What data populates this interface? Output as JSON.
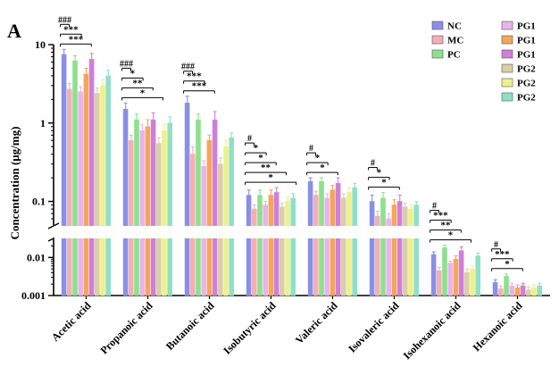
{
  "chart_data": {
    "type": "bar",
    "panel_label": "A",
    "ylabel": "Concentration (μg/mg)",
    "y_scale": "log, broken",
    "upper_ylim": [
      0.05,
      10
    ],
    "lower_ylim": [
      0.001,
      0.03
    ],
    "upper_ticks": [
      "10",
      "1",
      "0.1"
    ],
    "lower_ticks": [
      "0.01",
      "0.001"
    ],
    "grid": false,
    "legend_position": "top-right",
    "categories": [
      "Acetic acid",
      "Propanoic acid",
      "Butanoic acid",
      "Isobutyric acid",
      "Valeric acid",
      "Isovaleric acid",
      "Isohexanoic acid",
      "Hexanoic acid"
    ],
    "series": [
      {
        "name": "NC",
        "color": "#8a8fe6",
        "values": [
          7.5,
          1.5,
          1.8,
          0.12,
          0.18,
          0.1,
          0.012,
          0.0022
        ],
        "errors": [
          1.2,
          0.3,
          0.4,
          0.02,
          0.02,
          0.02,
          0.002,
          0.0004
        ]
      },
      {
        "name": "MC",
        "color": "#f3b0b4",
        "values": [
          2.7,
          0.6,
          0.4,
          0.08,
          0.12,
          0.065,
          0.0045,
          0.0015
        ],
        "errors": [
          0.5,
          0.1,
          0.1,
          0.01,
          0.015,
          0.01,
          0.001,
          0.0003
        ]
      },
      {
        "name": "PC",
        "color": "#8ee08e",
        "values": [
          6.2,
          1.1,
          1.1,
          0.12,
          0.18,
          0.11,
          0.018,
          0.0032
        ],
        "errors": [
          1.0,
          0.2,
          0.2,
          0.02,
          0.02,
          0.02,
          0.003,
          0.0005
        ]
      },
      {
        "name": "PG1",
        "color": "#e8b4ec",
        "values": [
          2.5,
          0.8,
          0.28,
          0.09,
          0.11,
          0.06,
          0.007,
          0.0018
        ],
        "errors": [
          0.4,
          0.15,
          0.05,
          0.01,
          0.015,
          0.01,
          0.001,
          0.0003
        ]
      },
      {
        "name": "PG1",
        "color": "#f6a55a",
        "values": [
          4.2,
          0.9,
          0.6,
          0.12,
          0.14,
          0.09,
          0.009,
          0.0016
        ],
        "errors": [
          0.8,
          0.2,
          0.1,
          0.02,
          0.02,
          0.015,
          0.002,
          0.0003
        ]
      },
      {
        "name": "PG1",
        "color": "#cf7fd8",
        "values": [
          6.5,
          1.1,
          1.1,
          0.13,
          0.17,
          0.1,
          0.015,
          0.0018
        ],
        "errors": [
          1.2,
          0.25,
          0.3,
          0.02,
          0.03,
          0.02,
          0.004,
          0.0003
        ]
      },
      {
        "name": "PG2",
        "color": "#d8cfa8",
        "values": [
          2.4,
          0.55,
          0.3,
          0.085,
          0.11,
          0.085,
          0.004,
          0.0014
        ],
        "errors": [
          0.4,
          0.1,
          0.06,
          0.01,
          0.015,
          0.01,
          0.001,
          0.0003
        ]
      },
      {
        "name": "PG2",
        "color": "#eef08e",
        "values": [
          3.0,
          0.8,
          0.5,
          0.1,
          0.13,
          0.08,
          0.005,
          0.0016
        ],
        "errors": [
          0.6,
          0.15,
          0.1,
          0.015,
          0.02,
          0.01,
          0.001,
          0.0003
        ]
      },
      {
        "name": "PG2",
        "color": "#8fe0c6",
        "values": [
          4.0,
          1.0,
          0.65,
          0.11,
          0.15,
          0.09,
          0.011,
          0.0018
        ],
        "errors": [
          0.7,
          0.2,
          0.1,
          0.015,
          0.02,
          0.01,
          0.002,
          0.0003
        ]
      }
    ],
    "annotations": [
      {
        "category": "Acetic acid",
        "labels": [
          "###",
          "***",
          "***"
        ]
      },
      {
        "category": "Propanoic acid",
        "labels": [
          "###",
          "*",
          "**",
          "*"
        ]
      },
      {
        "category": "Butanoic acid",
        "labels": [
          "###",
          "***",
          "***"
        ]
      },
      {
        "category": "Isobutyric acid",
        "labels": [
          "#",
          "*",
          "*",
          "**",
          "*"
        ]
      },
      {
        "category": "Valeric acid",
        "labels": [
          "#",
          "*",
          "*"
        ]
      },
      {
        "category": "Isovaleric acid",
        "labels": [
          "#",
          "*",
          "*"
        ]
      },
      {
        "category": "Isohexanoic acid",
        "labels": [
          "#",
          "***",
          "**",
          "*"
        ]
      },
      {
        "category": "Hexanoic acid",
        "labels": [
          "#",
          "***",
          "*"
        ]
      }
    ]
  }
}
